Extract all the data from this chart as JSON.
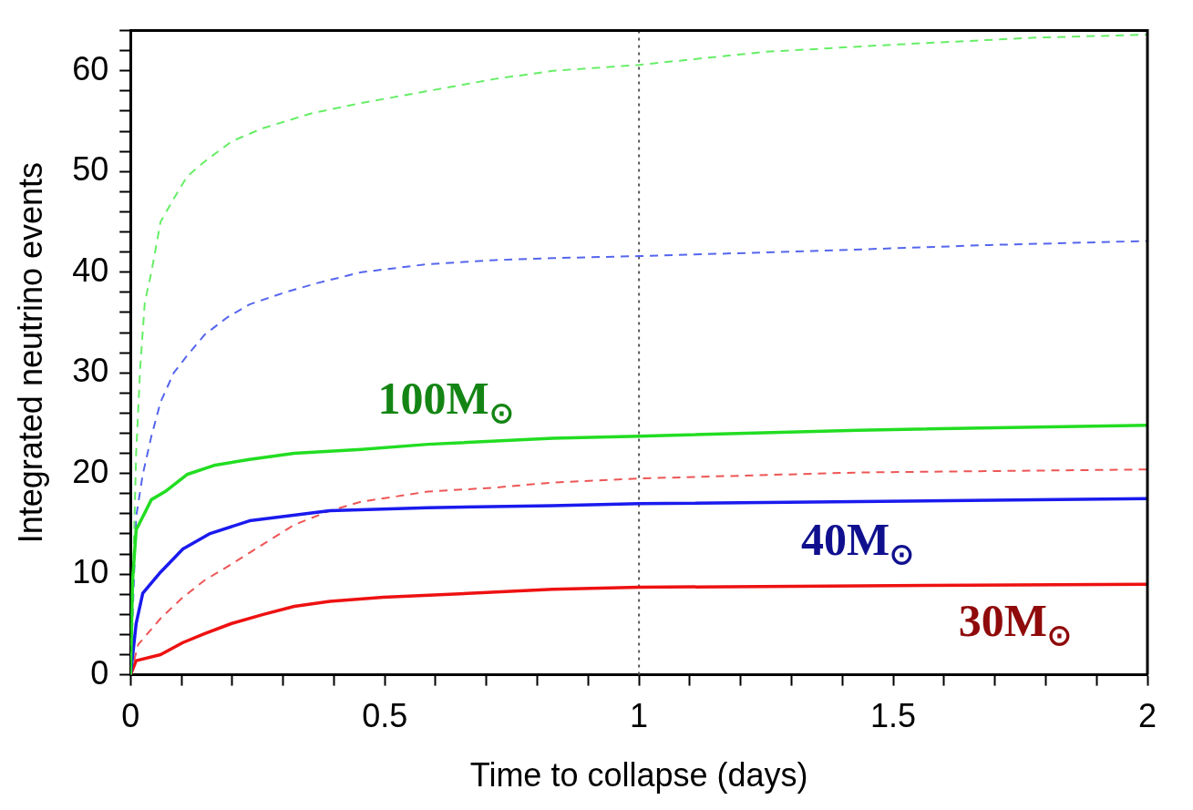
{
  "chart_data": {
    "type": "line",
    "xlabel": "Time to collapse (days)",
    "ylabel": "Integrated neutrino events",
    "xlim": [
      0,
      2
    ],
    "ylim": [
      0,
      64
    ],
    "xticks": [
      0,
      {
        "value": 0.1,
        "label": null
      },
      {
        "value": 0.2,
        "label": null
      },
      {
        "value": 0.3,
        "label": null
      },
      {
        "value": 0.4,
        "label": null
      },
      0.5,
      {
        "value": 0.6,
        "label": null
      },
      {
        "value": 0.7,
        "label": null
      },
      {
        "value": 0.8,
        "label": null
      },
      {
        "value": 0.9,
        "label": null
      },
      1,
      {
        "value": 1.1,
        "label": null
      },
      {
        "value": 1.2,
        "label": null
      },
      {
        "value": 1.3,
        "label": null
      },
      {
        "value": 1.4,
        "label": null
      },
      1.5,
      {
        "value": 1.6,
        "label": null
      },
      {
        "value": 1.7,
        "label": null
      },
      {
        "value": 1.8,
        "label": null
      },
      {
        "value": 1.9,
        "label": null
      },
      2
    ],
    "yticks": [
      0,
      {
        "value": 2,
        "label": null
      },
      {
        "value": 4,
        "label": null
      },
      {
        "value": 6,
        "label": null
      },
      {
        "value": 8,
        "label": null
      },
      10,
      {
        "value": 12,
        "label": null
      },
      {
        "value": 14,
        "label": null
      },
      {
        "value": 16,
        "label": null
      },
      {
        "value": 18,
        "label": null
      },
      20,
      {
        "value": 22,
        "label": null
      },
      {
        "value": 24,
        "label": null
      },
      {
        "value": 26,
        "label": null
      },
      {
        "value": 28,
        "label": null
      },
      30,
      {
        "value": 32,
        "label": null
      },
      {
        "value": 34,
        "label": null
      },
      {
        "value": 36,
        "label": null
      },
      {
        "value": 38,
        "label": null
      },
      40,
      {
        "value": 42,
        "label": null
      },
      {
        "value": 44,
        "label": null
      },
      {
        "value": 46,
        "label": null
      },
      {
        "value": 48,
        "label": null
      },
      50,
      {
        "value": 52,
        "label": null
      },
      {
        "value": 54,
        "label": null
      },
      {
        "value": 56,
        "label": null
      },
      {
        "value": 58,
        "label": null
      },
      60,
      {
        "value": 62,
        "label": null
      },
      {
        "value": 64,
        "label": null
      }
    ],
    "grid": false,
    "legend": false,
    "marker": "none",
    "series": [
      {
        "color": "#22dd22",
        "line_style": "solid",
        "x": [
          0,
          0.004,
          0.011,
          0.024,
          0.041,
          0.068,
          0.111,
          0.164,
          0.234,
          0.322,
          0.454,
          0.585,
          0.83,
          1,
          1.43,
          2
        ],
        "values": [
          0,
          9.4,
          14.4,
          15.7,
          17.4,
          18.2,
          19.9,
          20.8,
          21.4,
          22,
          22.4,
          22.9,
          23.5,
          23.7,
          24.3,
          24.8
        ]
      },
      {
        "color": "#1a1aee",
        "line_style": "solid",
        "x": [
          0,
          0.011,
          0.024,
          0.059,
          0.103,
          0.155,
          0.234,
          0.392,
          0.585,
          0.83,
          1,
          2
        ],
        "values": [
          0,
          5.1,
          8.1,
          10.2,
          12.5,
          14,
          15.3,
          16.3,
          16.6,
          16.8,
          17,
          17.5
        ]
      },
      {
        "color": "#ee1111",
        "line_style": "solid",
        "x": [
          0,
          0.011,
          0.059,
          0.103,
          0.146,
          0.199,
          0.261,
          0.322,
          0.392,
          0.497,
          0.673,
          0.83,
          1,
          2
        ],
        "values": [
          0,
          1.4,
          2,
          3.2,
          4.1,
          5.1,
          6,
          6.8,
          7.3,
          7.7,
          8.1,
          8.5,
          8.7,
          9
        ]
      },
      {
        "color": "#66ee66",
        "line_style": "dashed",
        "x": [
          0,
          0.011,
          0.019,
          0.028,
          0.041,
          0.059,
          0.085,
          0.111,
          0.146,
          0.199,
          0.26,
          0.357,
          0.453,
          0.585,
          0.717,
          0.83,
          1,
          1.25,
          1.5,
          1.78,
          2
        ],
        "values": [
          0,
          22,
          30.5,
          37,
          40,
          45,
          47.3,
          49.5,
          51,
          53,
          54.3,
          55.8,
          56.8,
          58,
          59.2,
          60,
          60.6,
          61.9,
          62.6,
          63.3,
          63.6
        ]
      },
      {
        "color": "#5566ee",
        "line_style": "dashed",
        "x": [
          0,
          0.011,
          0.024,
          0.041,
          0.059,
          0.085,
          0.111,
          0.146,
          0.19,
          0.234,
          0.304,
          0.366,
          0.454,
          0.585,
          0.717,
          0.83,
          1,
          1.34,
          1.69,
          2
        ],
        "values": [
          0,
          15.7,
          19.9,
          23.7,
          27.1,
          30,
          31.7,
          33.8,
          35.5,
          36.8,
          38,
          38.9,
          40,
          40.8,
          41.2,
          41.4,
          41.6,
          42.1,
          42.7,
          43.1
        ]
      },
      {
        "color": "#ee5555",
        "line_style": "dashed",
        "x": [
          0,
          0.015,
          0.059,
          0.103,
          0.146,
          0.199,
          0.252,
          0.322,
          0.392,
          0.454,
          0.585,
          0.717,
          0.83,
          1,
          1.43,
          2
        ],
        "values": [
          0,
          3,
          5.6,
          7.7,
          9.4,
          11,
          12.7,
          14.9,
          16.3,
          17.2,
          18.2,
          18.6,
          19.1,
          19.5,
          20.1,
          20.4
        ]
      }
    ],
    "ref_lines": [
      {
        "axis": "x",
        "value": 1,
        "color": "#555555",
        "line_style": "dotted"
      }
    ],
    "annotations": [
      "100M$_{⊙}$",
      "40M$_{⊙}$",
      "30M$_{⊙}$"
    ]
  }
}
